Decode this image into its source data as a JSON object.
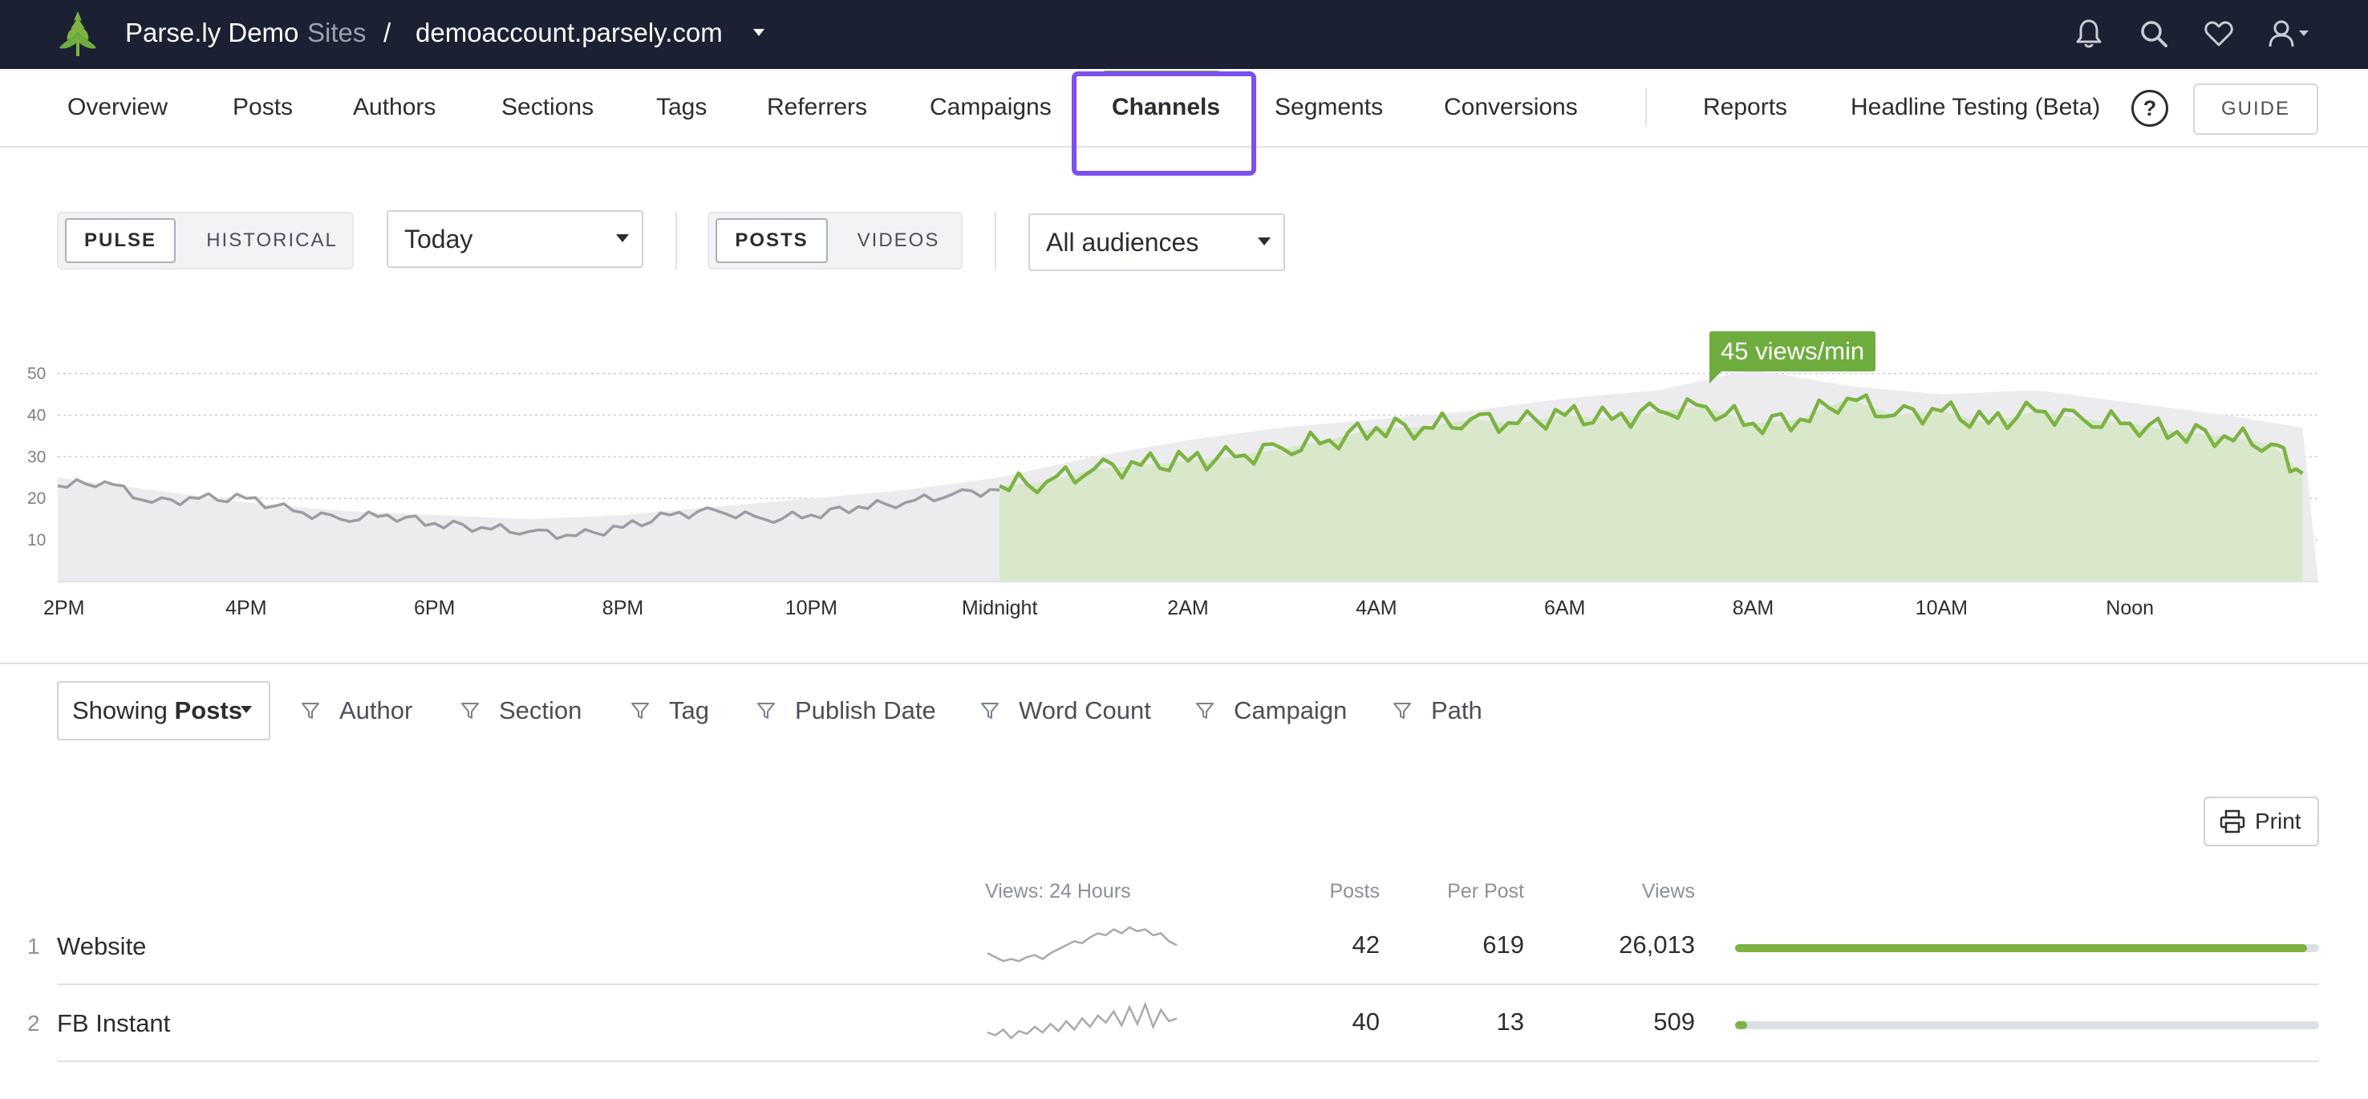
{
  "topbar": {
    "brand": "Parse.ly Demo",
    "sites_label": "Sites",
    "separator": "/",
    "domain": "demoaccount.parsely.com",
    "icons": [
      "bell-icon",
      "search-icon",
      "heart-icon",
      "user-icon"
    ]
  },
  "nav": {
    "items": [
      "Overview",
      "Posts",
      "Authors",
      "Sections",
      "Tags",
      "Referrers",
      "Campaigns",
      "Channels",
      "Segments",
      "Conversions",
      "Reports",
      "Headline Testing (Beta)"
    ],
    "active": "Channels",
    "help_label": "?",
    "guide_label": "GUIDE",
    "accent_color": "#7cb342",
    "highlight_color": "#7b4ff0"
  },
  "controls": {
    "mode": {
      "options": [
        "PULSE",
        "HISTORICAL"
      ],
      "selected": "PULSE"
    },
    "period": "Today",
    "content_type": {
      "options": [
        "POSTS",
        "VIDEOS"
      ],
      "selected": "POSTS"
    },
    "audience": "All audiences"
  },
  "chart_data": {
    "type": "area",
    "y_ticks": [
      10,
      20,
      30,
      40,
      50
    ],
    "ylim": [
      0,
      53
    ],
    "x_ticks": [
      "2PM",
      "4PM",
      "6PM",
      "8PM",
      "10PM",
      "Midnight",
      "2AM",
      "4AM",
      "6AM",
      "8AM",
      "10AM",
      "Noon"
    ],
    "tooltip": "45 views/min",
    "series": [
      {
        "period": "before midnight",
        "color": "#9a9da3",
        "x": [
          "2PM",
          "2:30PM",
          "3PM",
          "3:30PM",
          "4PM",
          "4:30PM",
          "5PM",
          "5:30PM",
          "6PM",
          "6:30PM",
          "7PM",
          "7:30PM",
          "8PM",
          "8:30PM",
          "9PM",
          "9:30PM",
          "10PM",
          "10:30PM",
          "11PM",
          "11:30PM",
          "Midnight"
        ],
        "values": [
          23,
          24,
          19,
          20,
          20,
          17,
          15,
          16,
          14,
          13,
          12,
          11,
          13,
          16,
          17,
          15,
          16,
          18,
          19,
          21,
          22
        ]
      },
      {
        "period": "after midnight",
        "color": "#7cb342",
        "x": [
          "Midnight",
          "12:30AM",
          "1AM",
          "1:30AM",
          "2AM",
          "2:30AM",
          "3AM",
          "3:30AM",
          "4AM",
          "4:30AM",
          "5AM",
          "5:30AM",
          "6AM",
          "6:30AM",
          "7AM",
          "7:30AM",
          "8AM",
          "8:30AM",
          "9AM",
          "9:30AM",
          "10AM",
          "10:30AM",
          "11AM",
          "11:30AM",
          "Noon",
          "12:30PM",
          "1PM",
          "1:30PM",
          "1:50PM"
        ],
        "values": [
          23,
          24,
          27,
          28,
          29,
          30,
          32,
          34,
          37,
          37,
          39,
          38,
          40,
          39,
          41,
          42,
          38,
          39,
          44,
          40,
          41,
          38,
          41,
          39,
          38,
          36,
          35,
          33,
          26
        ]
      }
    ],
    "baseline": {
      "color": "#ececee",
      "x": [
        "2PM",
        "3PM",
        "4PM",
        "5PM",
        "6PM",
        "7PM",
        "8PM",
        "9PM",
        "10PM",
        "11PM",
        "Midnight",
        "1AM",
        "2AM",
        "3AM",
        "4AM",
        "5AM",
        "6AM",
        "7AM",
        "8AM",
        "9AM",
        "10AM",
        "11AM",
        "Noon",
        "1PM",
        "1:50PM"
      ],
      "values": [
        25,
        22,
        19,
        17,
        16,
        15,
        16,
        18,
        20,
        22,
        25,
        30,
        34,
        37,
        39,
        41,
        44,
        46,
        51,
        47,
        45,
        46,
        43,
        40,
        37
      ]
    }
  },
  "filters": {
    "showing_prefix": "Showing",
    "showing_value": "Posts",
    "items": [
      "Author",
      "Section",
      "Tag",
      "Publish Date",
      "Word Count",
      "Campaign",
      "Path"
    ]
  },
  "print_label": "Print",
  "table": {
    "headers": {
      "spark": "Views: 24 Hours",
      "posts": "Posts",
      "per_post": "Per Post",
      "views": "Views"
    },
    "rows": [
      {
        "rank": "1",
        "name": "Website",
        "posts": "42",
        "per_post": "619",
        "views": "26,013",
        "share": 0.98,
        "spark": [
          12,
          10,
          8,
          9,
          8,
          10,
          11,
          9,
          12,
          14,
          16,
          18,
          17,
          20,
          22,
          21,
          24,
          22,
          25,
          23,
          24,
          21,
          22,
          18,
          16
        ]
      },
      {
        "rank": "2",
        "name": "FB Instant",
        "posts": "40",
        "per_post": "13",
        "views": "509",
        "share": 0.02,
        "spark": [
          10,
          8,
          12,
          6,
          11,
          9,
          14,
          10,
          16,
          11,
          18,
          12,
          20,
          14,
          22,
          17,
          25,
          15,
          28,
          16,
          30,
          14,
          26,
          18,
          20
        ]
      }
    ]
  }
}
